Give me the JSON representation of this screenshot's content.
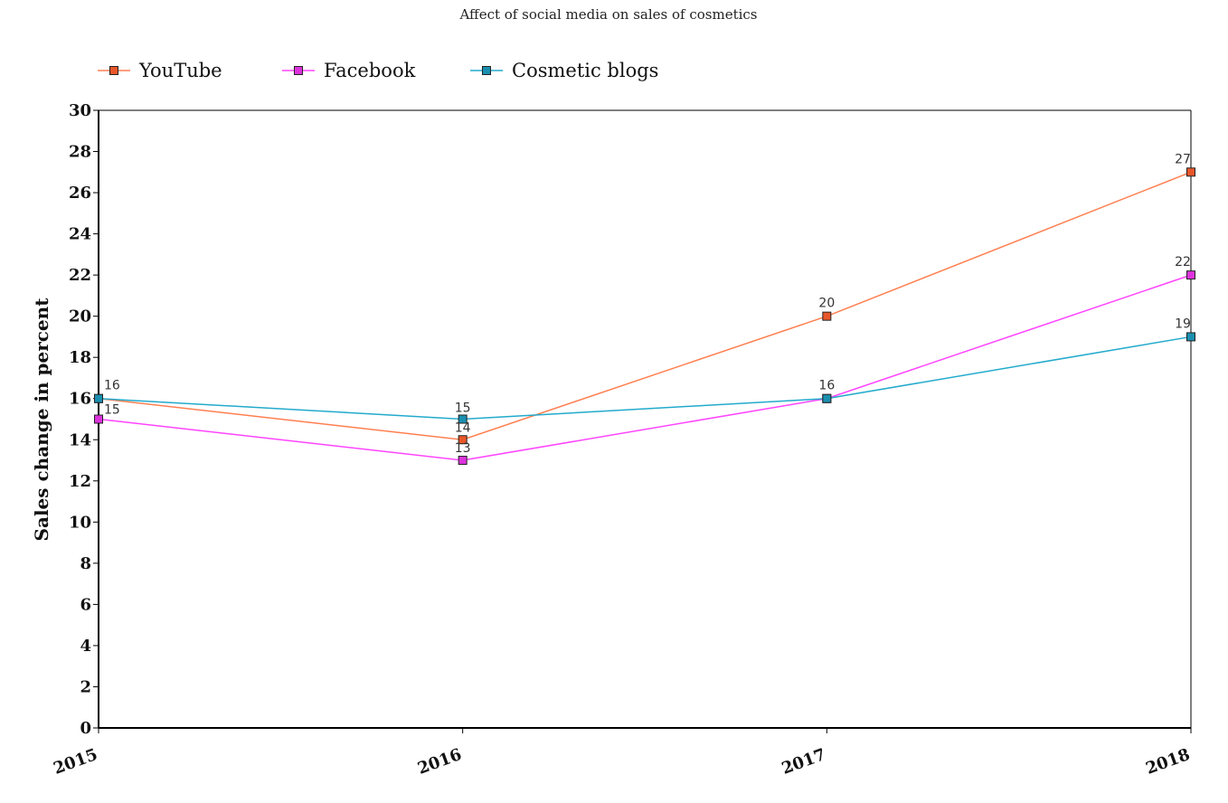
{
  "chart_data": {
    "type": "line",
    "title": "Affect of social media on sales of cosmetics",
    "xlabel": "",
    "ylabel": "Sales change in percent",
    "categories": [
      "2015",
      "2016",
      "2017",
      "2018"
    ],
    "ylim": [
      0,
      30
    ],
    "yticks": [
      0,
      2,
      4,
      6,
      8,
      10,
      12,
      14,
      16,
      18,
      20,
      22,
      24,
      26,
      28,
      30
    ],
    "grid": false,
    "legend_position": "top-left",
    "series": [
      {
        "name": "YouTube",
        "values": [
          16,
          14,
          20,
          27
        ],
        "color": "#ff7f50",
        "marker_color": "#e8572a"
      },
      {
        "name": "Facebook",
        "values": [
          15,
          13,
          16,
          22
        ],
        "color": "#ff44ff",
        "marker_color": "#dd33dd"
      },
      {
        "name": "Cosmetic blogs",
        "values": [
          16,
          15,
          16,
          19
        ],
        "color": "#22aacc",
        "marker_color": "#1a8fb0"
      }
    ],
    "data_labels": [
      {
        "series": "YouTube",
        "category": "2015",
        "text": "16"
      },
      {
        "series": "Facebook",
        "category": "2015",
        "text": "15"
      },
      {
        "series": "Cosmetic blogs",
        "category": "2016",
        "text": "15"
      },
      {
        "series": "YouTube",
        "category": "2016",
        "text": "14"
      },
      {
        "series": "Facebook",
        "category": "2016",
        "text": "13"
      },
      {
        "series": "YouTube",
        "category": "2017",
        "text": "20"
      },
      {
        "series": "Facebook",
        "category": "2017",
        "text": "16"
      },
      {
        "series": "YouTube",
        "category": "2018",
        "text": "27"
      },
      {
        "series": "Facebook",
        "category": "2018",
        "text": "22"
      },
      {
        "series": "Cosmetic blogs",
        "category": "2018",
        "text": "19"
      }
    ]
  }
}
